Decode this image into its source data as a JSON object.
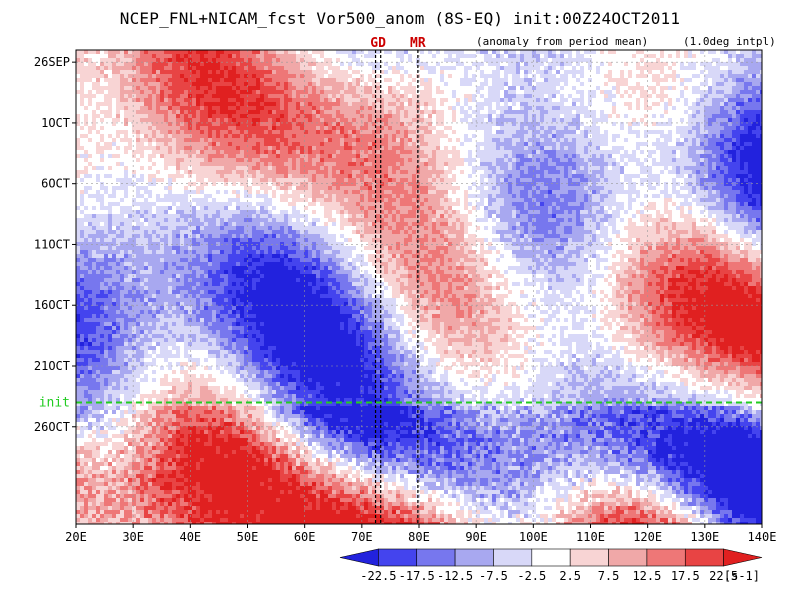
{
  "header": {
    "title": "NCEP_FNL+NICAM_fcst Vor500_anom (8S-EQ) init:00Z24OCT2011",
    "subtitle": "(anomaly from period mean)",
    "interpolation": "(1.0deg intpl)"
  },
  "chart_data": {
    "type": "heatmap",
    "title": "NCEP_FNL+NICAM_fcst Vor500_anom (8S-EQ) init:00Z24OCT2011",
    "x": {
      "label": "",
      "range": [
        20,
        140
      ],
      "ticks": [
        20,
        30,
        40,
        50,
        60,
        70,
        80,
        90,
        100,
        110,
        120,
        130,
        140
      ],
      "tick_labels": [
        "20E",
        "30E",
        "40E",
        "50E",
        "60E",
        "70E",
        "80E",
        "90E",
        "100E",
        "110E",
        "120E",
        "130E",
        "140E"
      ]
    },
    "y": {
      "label": "",
      "range_days": [
        -29,
        10
      ],
      "ticks_days": [
        -28,
        -23,
        -18,
        -13,
        -8,
        -3,
        2
      ],
      "tick_labels": [
        "26SEP",
        "1OCT",
        "6OCT",
        "11OCT",
        "16OCT",
        "21OCT",
        "26OCT"
      ],
      "direction": "time increasing downward"
    },
    "markers": [
      {
        "label": "GD",
        "lon_start": 72.4,
        "lon_end": 73.3
      },
      {
        "label": "MR",
        "lon_start": 79.8,
        "lon_end": 79.8
      }
    ],
    "init_line": {
      "label": "init",
      "day": 0
    },
    "colorbar": {
      "unit": "[s-1]",
      "levels": [
        -22.5,
        -17.5,
        -12.5,
        -7.5,
        -2.5,
        2.5,
        7.5,
        12.5,
        17.5,
        22.5
      ],
      "level_labels": [
        "-22.5",
        "-17.5",
        "-12.5",
        "-7.5",
        "-2.5",
        "2.5",
        "7.5",
        "12.5",
        "17.5",
        "22.5"
      ],
      "colors": [
        "#2222dd",
        "#4444ee",
        "#7777ee",
        "#a8a8f0",
        "#d8d8f8",
        "#ffffff",
        "#f8d4d4",
        "#f0a8a8",
        "#ee7777",
        "#e84444",
        "#e02020"
      ]
    },
    "grid": true
  }
}
